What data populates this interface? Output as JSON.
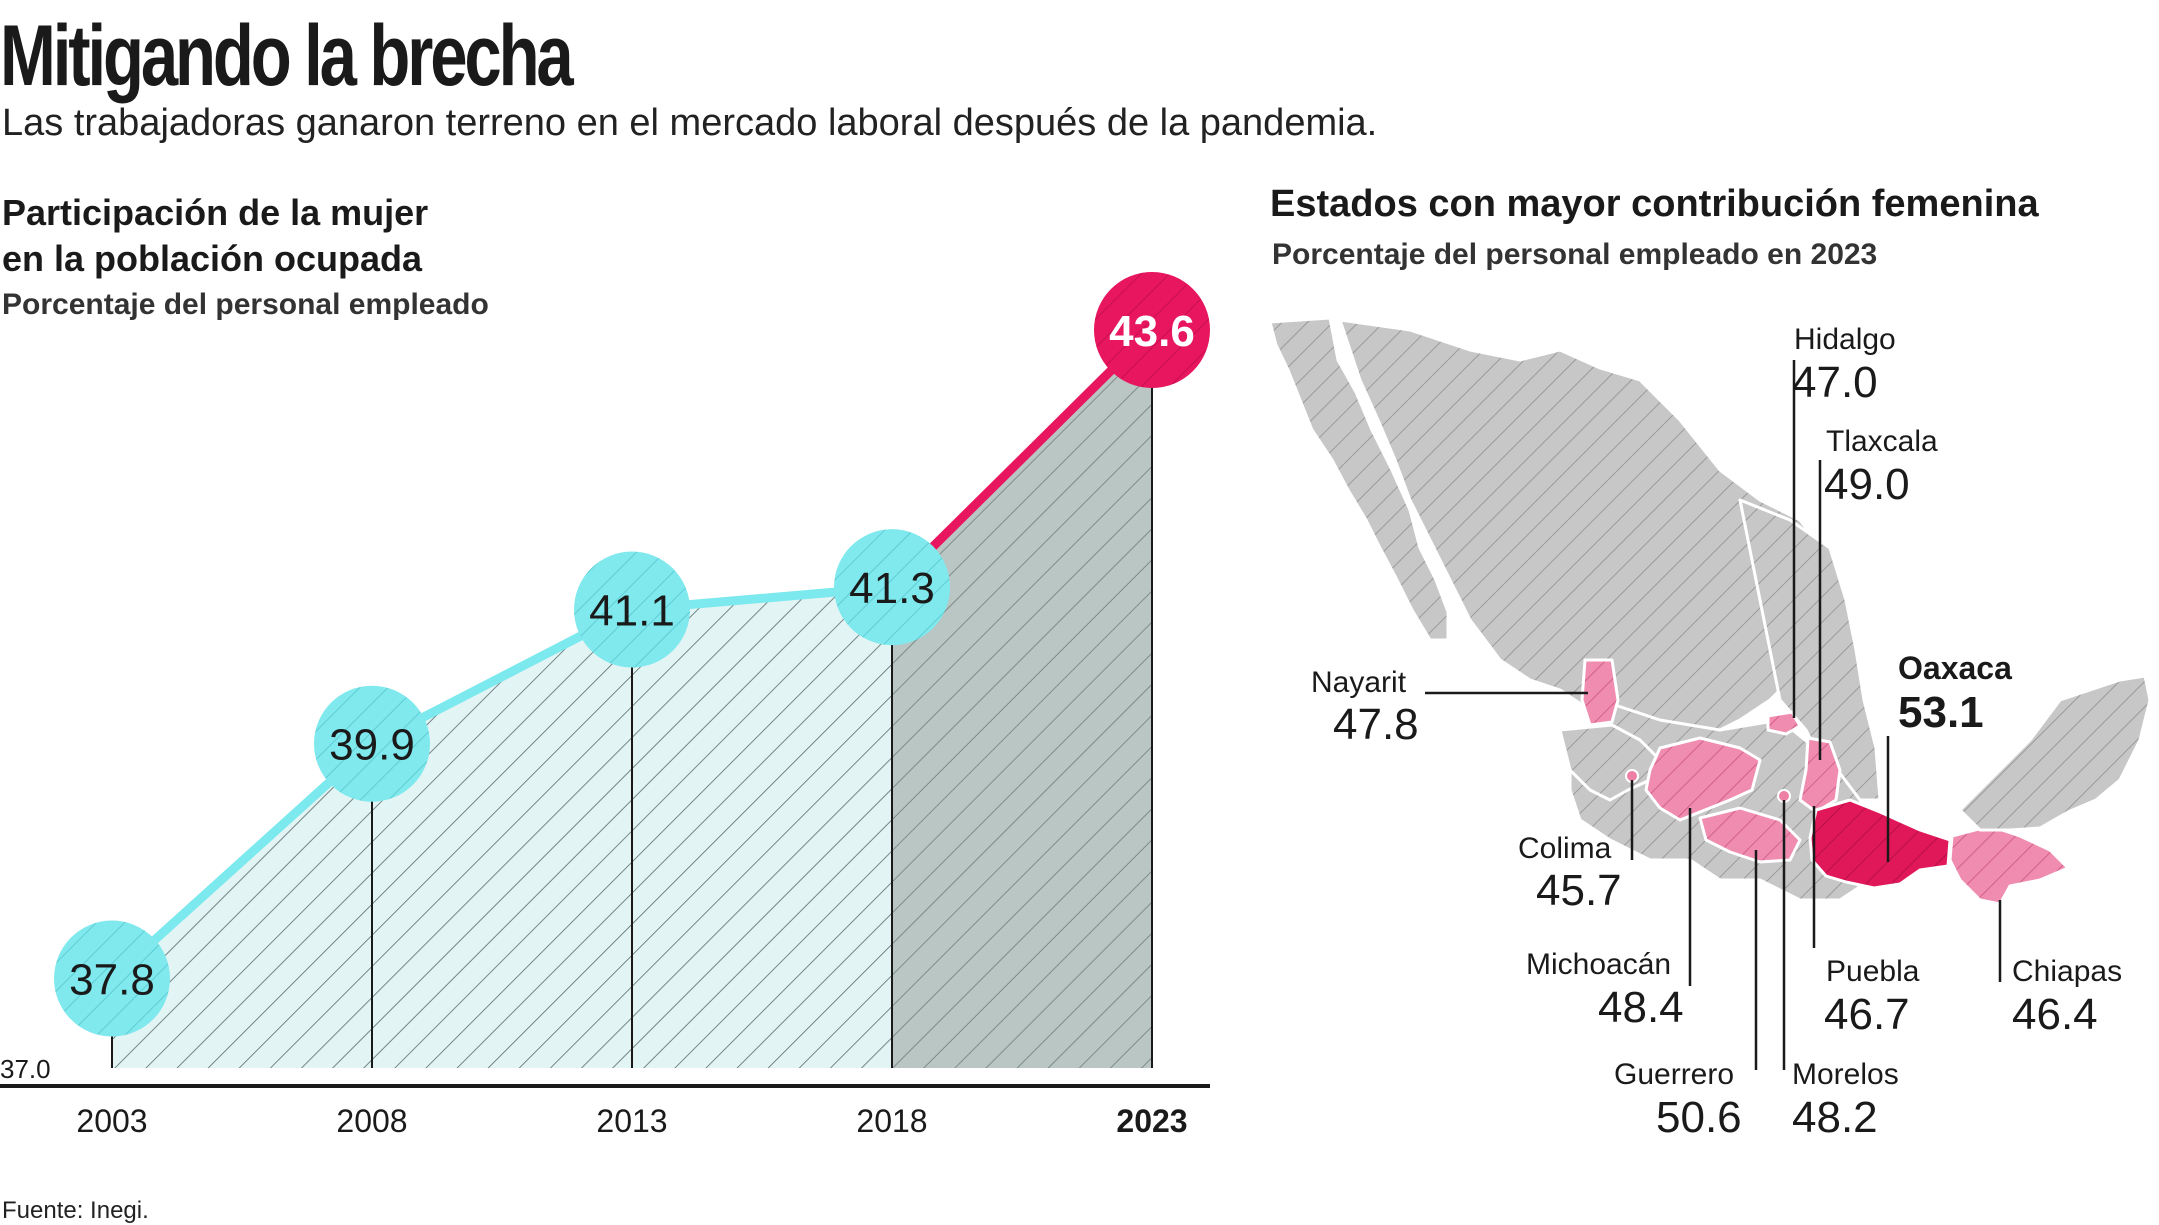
{
  "header": {
    "title": "Mitigando la brecha",
    "subtitle": "Las trabajadoras ganaron terreno en el mercado laboral después de la pandemia."
  },
  "colors": {
    "cyan": "#7be9ee",
    "cyan_fill": "#e5f5f5",
    "red": "#e8155f",
    "gray_area": "#b8c4c2",
    "map_gray": "#c9c9c9",
    "pink": "#ee7fa5",
    "pink_dark": "#e0185a"
  },
  "chart_data": [
    {
      "type": "area",
      "title": "Participación de la mujer en la población ocupada",
      "title_line1": "Participación de la mujer",
      "title_line2": "en la población ocupada",
      "subtitle": "Porcentaje del personal empleado",
      "categories": [
        "2003",
        "2008",
        "2013",
        "2018",
        "2023"
      ],
      "values": [
        37.8,
        39.9,
        41.1,
        41.3,
        43.6
      ],
      "labels": [
        "37.8",
        "39.9",
        "41.1",
        "41.3",
        "43.6"
      ],
      "baseline_label": "37.0",
      "ylim": [
        37.0,
        43.6
      ],
      "highlight": "2023"
    },
    {
      "type": "map",
      "title": "Estados con mayor contribución femenina",
      "subtitle": "Porcentaje del personal empleado en 2023",
      "states": [
        {
          "name": "Hidalgo",
          "value": "47.0"
        },
        {
          "name": "Tlaxcala",
          "value": "49.0"
        },
        {
          "name": "Nayarit",
          "value": "47.8"
        },
        {
          "name": "Oaxaca",
          "value": "53.1",
          "highlight": true
        },
        {
          "name": "Colima",
          "value": "45.7"
        },
        {
          "name": "Michoacán",
          "value": "48.4"
        },
        {
          "name": "Puebla",
          "value": "46.7"
        },
        {
          "name": "Chiapas",
          "value": "46.4"
        },
        {
          "name": "Guerrero",
          "value": "50.6"
        },
        {
          "name": "Morelos",
          "value": "48.2"
        }
      ]
    }
  ],
  "footer": {
    "source": "Fuente: Inegi."
  }
}
